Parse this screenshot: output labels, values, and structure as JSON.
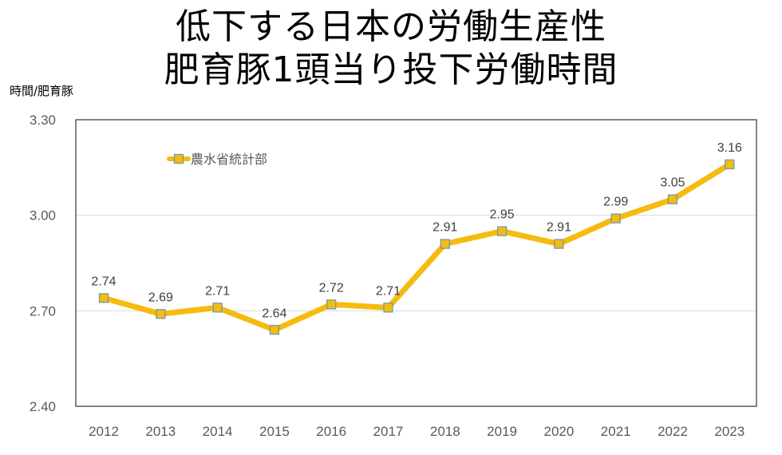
{
  "header": {
    "title_line1": "低下する日本の労働生産性",
    "title_line2": "肥育豚1頭当り投下労働時間"
  },
  "colors": {
    "line": "#F5BB0F",
    "marker_fill": "#F5BB0F",
    "marker_edge": "#6E9BB3",
    "grid": "#D9D9D9",
    "frame": "#333333",
    "tick_text": "#595959",
    "label_text": "#404040"
  },
  "chart_data": {
    "type": "line",
    "title": "低下する日本の労働生産性 肥育豚1頭当り投下労働時間",
    "xlabel": "",
    "ylabel": "時間/肥育豚",
    "categories": [
      "2012",
      "2013",
      "2014",
      "2015",
      "2016",
      "2017",
      "2018",
      "2019",
      "2020",
      "2021",
      "2022",
      "2023"
    ],
    "series": [
      {
        "name": "農水省統計部",
        "values": [
          2.74,
          2.69,
          2.71,
          2.64,
          2.72,
          2.71,
          2.91,
          2.95,
          2.91,
          2.99,
          3.05,
          3.16
        ],
        "labels": [
          "2.74",
          "2.69",
          "2.71",
          "2.64",
          "2.72",
          "2.71",
          "2.91",
          "2.95",
          "2.91",
          "2.99",
          "3.05",
          "3.16"
        ]
      }
    ],
    "ylim": [
      2.4,
      3.3
    ],
    "yticks": [
      2.4,
      2.7,
      3.0,
      3.3
    ],
    "ytick_labels": [
      "2.40",
      "2.70",
      "3.00",
      "3.30"
    ],
    "grid": true,
    "legend": "top-left"
  }
}
